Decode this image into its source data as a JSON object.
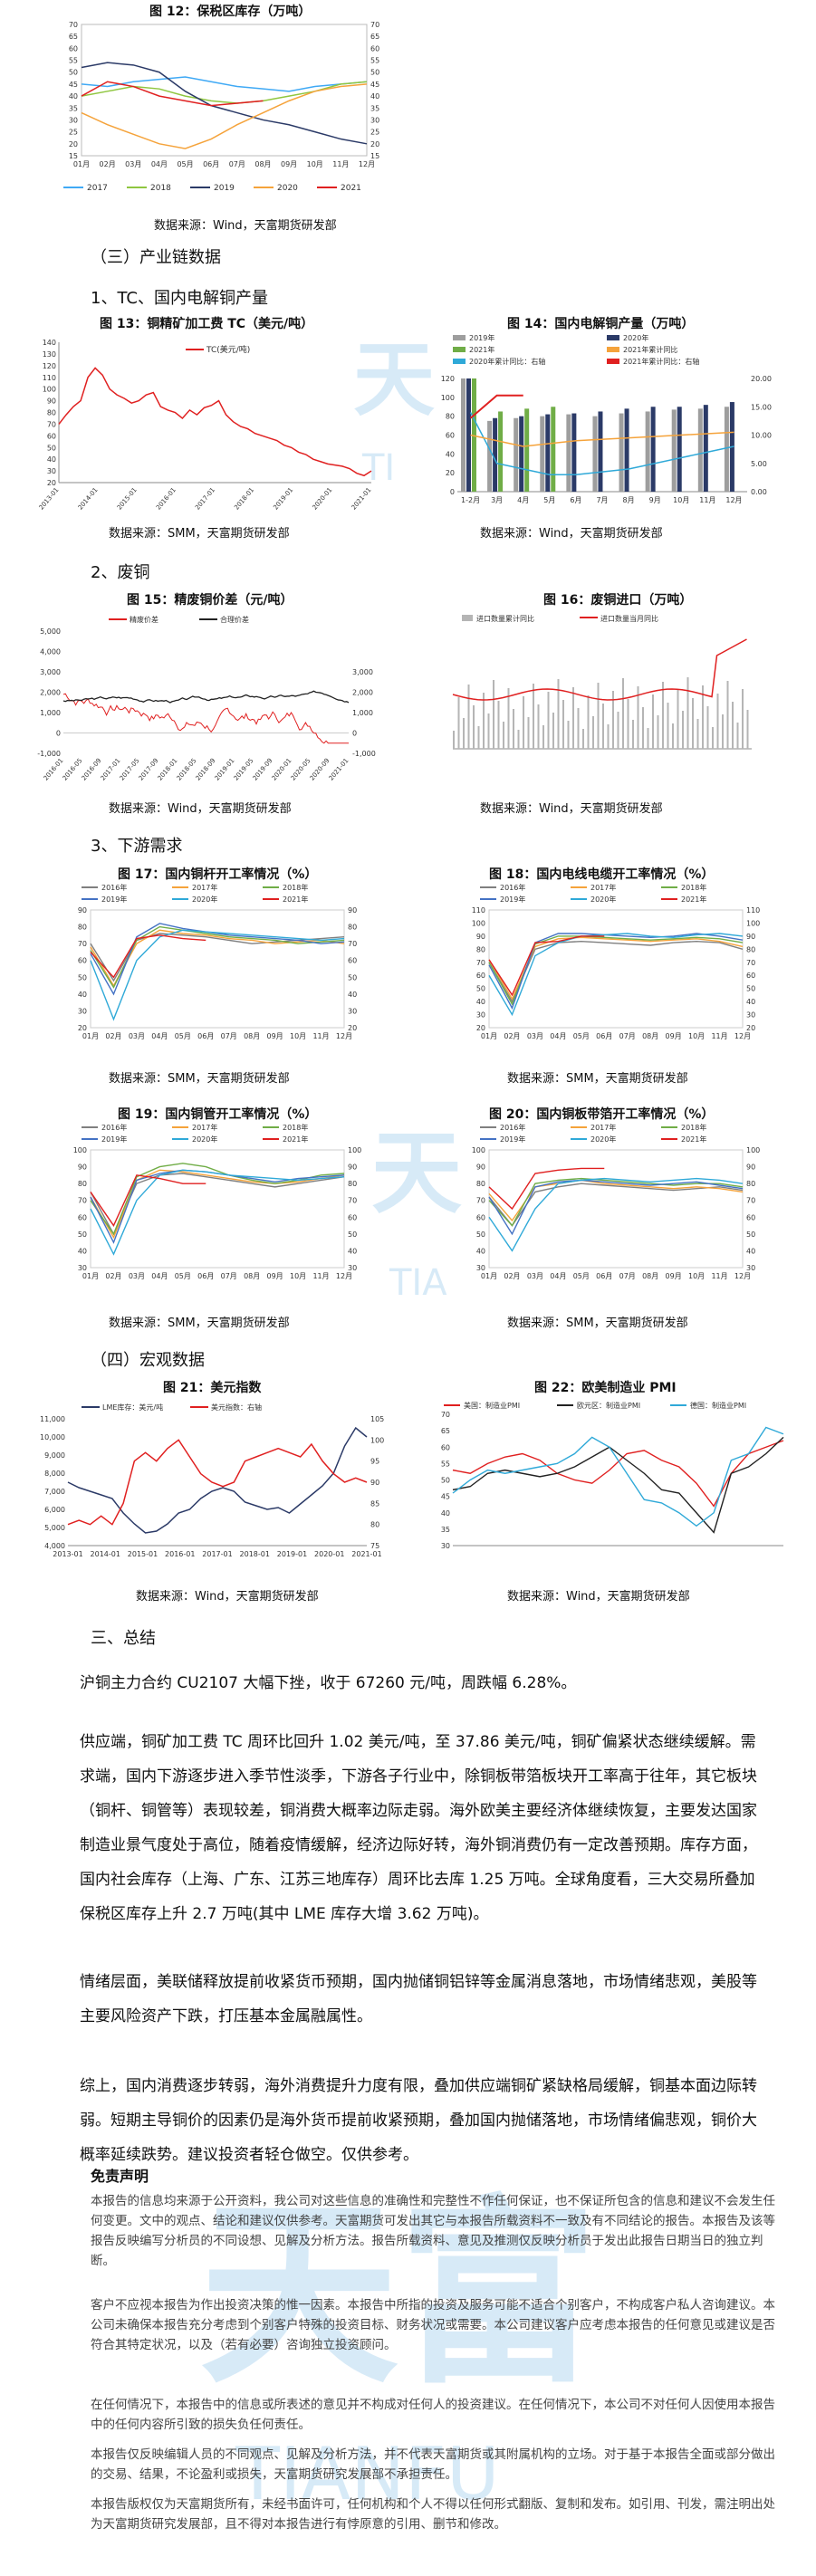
{
  "fig12": {
    "title": "图 12：保税区库存（万吨）",
    "source": "数据来源：Wind，天富期货研发部",
    "y_ticks": [
      "70",
      "65",
      "60",
      "55",
      "50",
      "45",
      "40",
      "35",
      "30",
      "25",
      "20",
      "15"
    ],
    "x_ticks": [
      "01月",
      "02月",
      "03月",
      "04月",
      "05月",
      "06月",
      "07月",
      "08月",
      "09月",
      "10月",
      "11月",
      "12月"
    ],
    "legend": [
      "2017",
      "2018",
      "2019",
      "2020",
      "2021"
    ],
    "colors": [
      "#3fa9f5",
      "#8fc63f",
      "#2b3a67",
      "#f5a33b",
      "#e02020"
    ]
  },
  "section_chain": "（三）产业链数据",
  "section_tc": "1、TC、国内电解铜产量",
  "fig13": {
    "title": "图 13：铜精矿加工费 TC（美元/吨）",
    "legend": "TC(美元/吨)",
    "y_ticks": [
      "140",
      "130",
      "120",
      "110",
      "100",
      "90",
      "80",
      "70",
      "60",
      "50",
      "40",
      "30",
      "20"
    ],
    "x_ticks": [
      "2013-01",
      "2014-01",
      "2015-01",
      "2016-01",
      "2017-01",
      "2018-01",
      "2019-01",
      "2020-01",
      "2021-01"
    ],
    "source": "数据来源：SMM，天富期货研发部"
  },
  "fig14": {
    "title": "图 14：国内电解铜产量（万吨）",
    "legend": [
      "2019年",
      "2020年",
      "2021年",
      "2021年累计同比",
      "2020年累计同比：右轴",
      "2021年累计同比：右轴"
    ],
    "y_left": [
      "120",
      "100",
      "80",
      "60",
      "40",
      "20",
      "0"
    ],
    "y_right": [
      "20.00",
      "15.00",
      "10.00",
      "5.00",
      "0.00"
    ],
    "x_ticks": [
      "1-2月",
      "3月",
      "4月",
      "5月",
      "6月",
      "7月",
      "8月",
      "9月",
      "10月",
      "11月",
      "12月"
    ],
    "source": "数据来源：Wind，天富期货研发部"
  },
  "section_scrap": "2、废铜",
  "fig15": {
    "title": "图 15：精废铜价差（元/吨）",
    "legend": [
      "精废价差",
      "合理价差"
    ],
    "y_left": [
      "5,000",
      "4,000",
      "3,000",
      "2,000",
      "1,000",
      "0",
      "-1,000"
    ],
    "y_right": [
      "3,000",
      "2,000",
      "1,000",
      "0",
      "-1,000"
    ],
    "x_ticks": [
      "2016-01",
      "2016-05",
      "2016-09",
      "2017-01",
      "2017-05",
      "2017-09",
      "2018-01",
      "2018-05",
      "2018-09",
      "2019-01",
      "2019-05",
      "2019-09",
      "2020-01",
      "2020-05",
      "2020-09",
      "2021-01"
    ],
    "source": "数据来源：Wind，天富期货研发部"
  },
  "fig16": {
    "title": "图 16：废铜进口（万吨）",
    "legend": [
      "进口数量累计同比",
      "进口数量当月同比"
    ],
    "source": "数据来源：Wind，天富期货研发部"
  },
  "section_demand": "3、下游需求",
  "fig17": {
    "title": "图 17：国内铜杆开工率情况（%）",
    "source": "数据来源：SMM，天富期货研发部"
  },
  "fig18": {
    "title": "图 18：国内电线电缆开工率情况（%）",
    "source": "数据来源：SMM，天富期货研发部"
  },
  "fig19": {
    "title": "图 19：国内铜管开工率情况（%）",
    "source": "数据来源：SMM，天富期货研发部"
  },
  "fig20": {
    "title": "图 20：国内铜板带箔开工率情况（%）",
    "source": "数据来源：SMM，天富期货研发部"
  },
  "util_legend": [
    "2016年",
    "2017年",
    "2018年",
    "2019年",
    "2020年",
    "2021年"
  ],
  "util_colors": [
    "#7f7f7f",
    "#f5a33b",
    "#70ad47",
    "#4472c4",
    "#2fa9d8",
    "#e02020"
  ],
  "month_ticks": [
    "01月",
    "02月",
    "03月",
    "04月",
    "05月",
    "06月",
    "07月",
    "08月",
    "09月",
    "10月",
    "11月",
    "12月"
  ],
  "section_macro": "（四）宏观数据",
  "fig21": {
    "title": "图 21：美元指数",
    "legend": [
      "LME库存：美元/吨",
      "美元指数：右轴"
    ],
    "y_left": [
      "11,000",
      "10,000",
      "9,000",
      "8,000",
      "7,000",
      "6,000",
      "5,000",
      "4,000"
    ],
    "y_right": [
      "105",
      "100",
      "95",
      "90",
      "85",
      "80",
      "75"
    ],
    "x_ticks": [
      "2013-01",
      "2014-01",
      "2015-01",
      "2016-01",
      "2017-01",
      "2018-01",
      "2019-01",
      "2020-01",
      "2021-01"
    ],
    "source": "数据来源：Wind，天富期货研发部"
  },
  "fig22": {
    "title": "图 22：欧美制造业 PMI",
    "legend": [
      "美国：制造业PMI",
      "欧元区：制造业PMI",
      "德国：制造业PMI"
    ],
    "y_ticks": [
      "70",
      "65",
      "60",
      "55",
      "50",
      "45",
      "40",
      "35",
      "30"
    ],
    "source": "数据来源：Wind，天富期货研发部"
  },
  "section_summary": "三、总结",
  "summary": [
    "沪铜主力合约 CU2107 大幅下挫，收于 67260 元/吨，周跌幅 6.28%。",
    "供应端，铜矿加工费 TC 周环比回升 1.02 美元/吨，至 37.86 美元/吨，铜矿偏紧状态继续缓解。需求端，国内下游逐步进入季节性淡季，下游各子行业中，除铜板带箔板块开工率高于往年，其它板块（铜杆、铜管等）表现较差，铜消费大概率边际走弱。海外欧美主要经济体继续恢复，主要发达国家制造业景气度处于高位，随着疫情缓解，经济边际好转，海外铜消费仍有一定改善预期。库存方面，国内社会库存（上海、广东、江苏三地库存）周环比去库 1.25 万吨。全球角度看，三大交易所叠加保税区库存上升 2.7 万吨(其中 LME 库存大增 3.62 万吨)。",
    "情绪层面，美联储释放提前收紧货币预期，国内抛储铜铝锌等金属消息落地，市场情绪悲观，美股等主要风险资产下跌，打压基本金属融属性。",
    "综上，国内消费逐步转弱，海外消费提升力度有限，叠加供应端铜矿紧缺格局缓解，铜基本面边际转弱。短期主导铜价的因素仍是海外货币提前收紧预期，叠加国内抛储落地，市场情绪偏悲观，铜价大概率延续跌势。建议投资者轻仓做空。仅供参考。"
  ],
  "disclaimer_title": "免责声明",
  "disclaimer": [
    "本报告的信息均来源于公开资料，我公司对这些信息的准确性和完整性不作任何保证，也不保证所包含的信息和建议不会发生任何变更。文中的观点、结论和建议仅供参考。天富期货可发出其它与本报告所载资料不一致及有不同结论的报告。本报告及该等报告反映编写分析员的不同设想、见解及分析方法。报告所载资料、意见及推测仅反映分析员于发出此报告日期当日的独立判断。",
    "客户不应视本报告为作出投资决策的惟一因素。本报告中所指的投资及服务可能不适合个别客户，不构成客户私人咨询建议。本公司未确保本报告充分考虑到个别客户特殊的投资目标、财务状况或需要。本公司建议客户应考虑本报告的任何意见或建议是否符合其特定状况，以及（若有必要）咨询独立投资顾问。",
    "在任何情况下，本报告中的信息或所表述的意见并不构成对任何人的投资建议。在任何情况下，本公司不对任何人因使用本报告中的任何内容所引致的损失负任何责任。",
    "本报告仅反映编辑人员的不同观点、见解及分析方法，并不代表天富期货或其附属机构的立场。对于基于本报告全面或部分做出的交易、结果，不论盈利或损失，天富期货研究发展部不承担责任。",
    "本报告版权仅为天富期货所有，未经书面许可，任何机构和个人不得以任何形式翻版、复制和发布。如引用、刊发，需注明出处为天富期货研究发展部，且不得对本报告进行有悖原意的引用、删节和修改。"
  ]
}
